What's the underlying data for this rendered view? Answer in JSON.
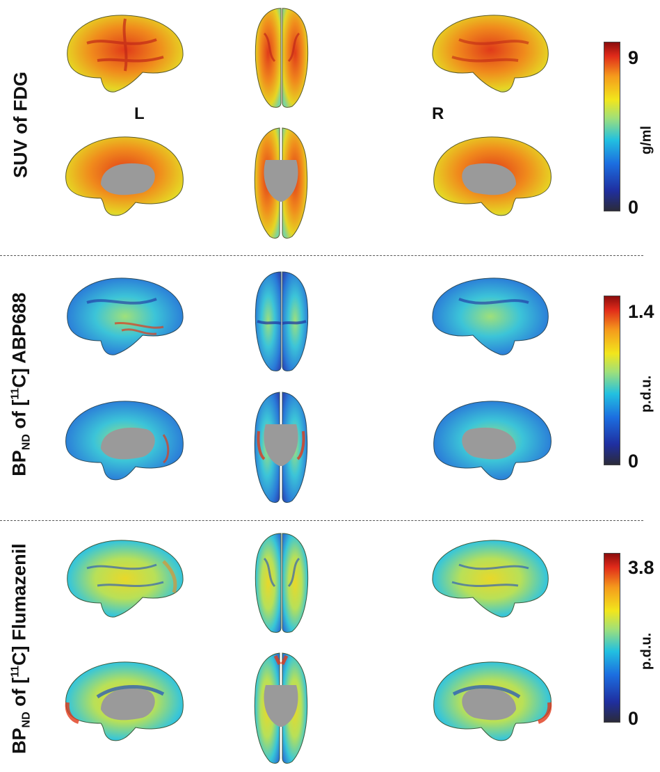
{
  "panels": [
    {
      "title_main": "SUV of FDG",
      "unit": "g/ml",
      "max": "9",
      "min": "0",
      "palette": "warm"
    },
    {
      "title_pre": "BP",
      "title_sub": "ND",
      "title_mid": " of [",
      "title_sup": "11",
      "title_post": "C] ABP688",
      "unit": "p.d.u.",
      "max": "1.4",
      "min": "0",
      "palette": "cool"
    },
    {
      "title_pre": "BP",
      "title_sub": "ND",
      "title_mid": " of [",
      "title_sup": "11",
      "title_post": "C] Flumazenil",
      "unit": "p.d.u.",
      "max": "3.8",
      "min": "0",
      "palette": "mixed"
    }
  ],
  "hemispheres": {
    "left": "L",
    "right": "R"
  },
  "colors": {
    "gray_wall": "#9a9a9a",
    "divider": "#555555"
  }
}
